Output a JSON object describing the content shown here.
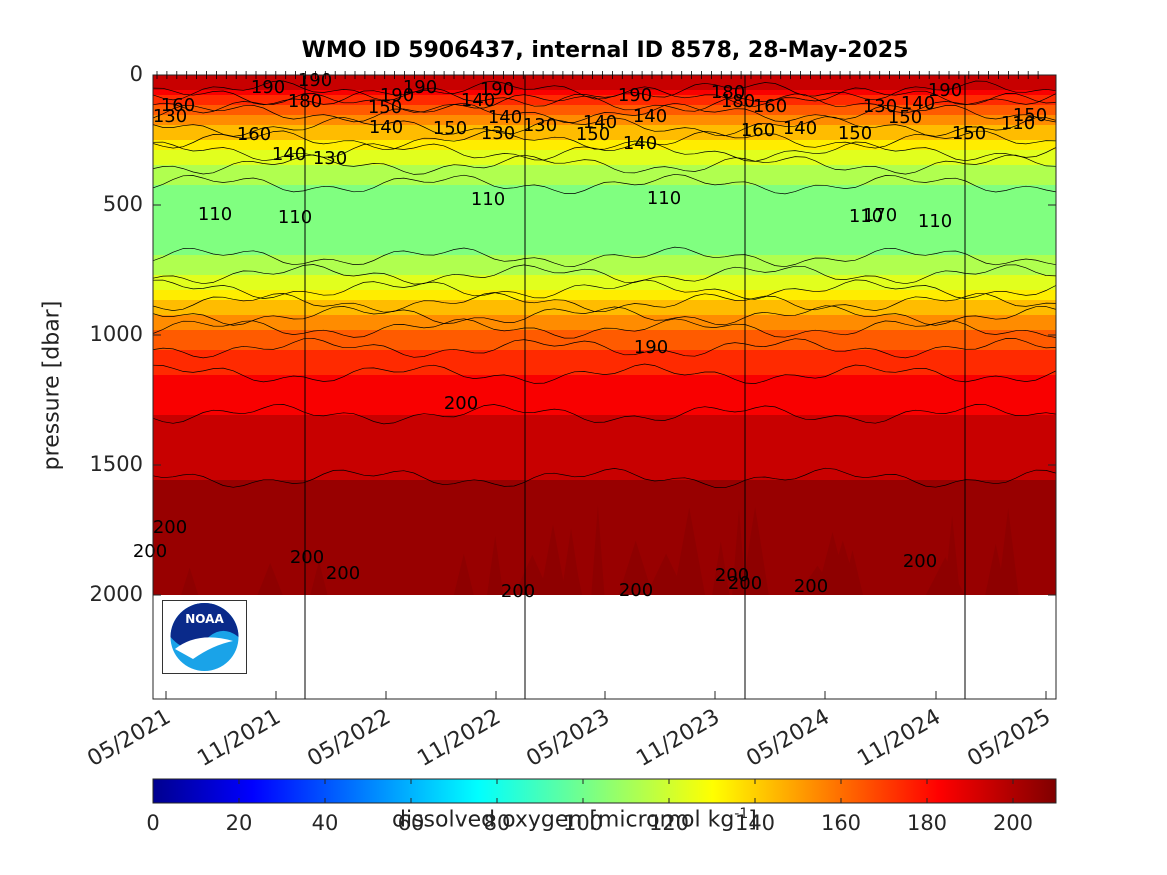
{
  "chart_data": {
    "type": "heatmap",
    "title": "WMO ID 5906437, internal ID 8578, 28-May-2025",
    "ylabel": "pressure [dbar]",
    "colorbar_label_main": "dissolved oxygen [micromol kg",
    "colorbar_label_sup": "-1",
    "colorbar_label_end": "]",
    "colormap": "jet",
    "ylim": [
      2400,
      0
    ],
    "y_reversed": true,
    "yticks": [
      "0",
      "500",
      "1000",
      "1500",
      "2000"
    ],
    "xticks": [
      "05/2021",
      "11/2021",
      "05/2022",
      "11/2022",
      "05/2023",
      "11/2023",
      "05/2024",
      "11/2024",
      "05/2025"
    ],
    "clim": [
      0,
      210
    ],
    "colorbar_ticks": [
      "0",
      "20",
      "40",
      "60",
      "80",
      "100",
      "120",
      "140",
      "160",
      "180",
      "200"
    ],
    "contour_interval": 10,
    "profile": [
      {
        "pressure": 0,
        "oxygen": 198
      },
      {
        "pressure": 60,
        "oxygen": 190
      },
      {
        "pressure": 120,
        "oxygen": 165
      },
      {
        "pressure": 250,
        "oxygen": 140
      },
      {
        "pressure": 330,
        "oxygen": 122
      },
      {
        "pressure": 420,
        "oxygen": 110
      },
      {
        "pressure": 550,
        "oxygen": 105
      },
      {
        "pressure": 700,
        "oxygen": 110
      },
      {
        "pressure": 800,
        "oxygen": 125
      },
      {
        "pressure": 900,
        "oxygen": 145
      },
      {
        "pressure": 1000,
        "oxygen": 165
      },
      {
        "pressure": 1150,
        "oxygen": 180
      },
      {
        "pressure": 1350,
        "oxygen": 193
      },
      {
        "pressure": 1550,
        "oxygen": 200
      },
      {
        "pressure": 1800,
        "oxygen": 204
      },
      {
        "pressure": 2000,
        "oxygen": 207
      }
    ],
    "contour_labels": [
      "190",
      "190",
      "160",
      "130",
      "180",
      "160",
      "140",
      "130",
      "110",
      "110",
      "110",
      "150",
      "190",
      "190",
      "140",
      "190",
      "140",
      "140",
      "150",
      "130",
      "130",
      "190",
      "180",
      "140",
      "150",
      "140",
      "160",
      "140",
      "110",
      "180",
      "160",
      "140",
      "150",
      "130",
      "140",
      "150",
      "110",
      "110",
      "190",
      "150",
      "150",
      "110",
      "170",
      "190",
      "200",
      "200",
      "200",
      "200",
      "200",
      "200",
      "200",
      "200",
      "200",
      "200",
      "200"
    ],
    "cycle_lines": [
      "11/2021-late",
      "12/2022-mid",
      "01/2024-mid",
      "01/2025-late"
    ]
  },
  "logo": {
    "text": "NOAA"
  }
}
